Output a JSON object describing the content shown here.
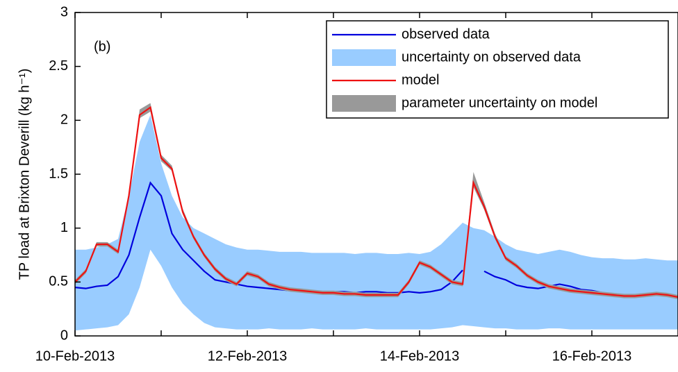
{
  "chart_data": {
    "type": "line",
    "ylabel": "TP load at Brixton Deverill (kg h⁻¹)",
    "annotation": "(b)",
    "x": [
      0,
      0.125,
      0.25,
      0.375,
      0.5,
      0.625,
      0.75,
      0.875,
      1,
      1.125,
      1.25,
      1.375,
      1.5,
      1.625,
      1.75,
      1.875,
      2,
      2.125,
      2.25,
      2.375,
      2.5,
      2.625,
      2.75,
      2.875,
      3,
      3.125,
      3.25,
      3.375,
      3.5,
      3.625,
      3.75,
      3.875,
      4,
      4.125,
      4.25,
      4.375,
      4.5,
      4.625,
      4.75,
      4.875,
      5,
      5.125,
      5.25,
      5.375,
      5.5,
      5.625,
      5.75,
      5.875,
      6,
      6.125,
      6.25,
      6.375,
      6.5,
      6.625,
      6.75,
      6.875,
      7
    ],
    "xlim": [
      0,
      7
    ],
    "xticks": [
      {
        "value": 0,
        "label": "10-Feb-2013"
      },
      {
        "value": 2,
        "label": "12-Feb-2013"
      },
      {
        "value": 4,
        "label": "14-Feb-2013"
      },
      {
        "value": 6,
        "label": "16-Feb-2013"
      }
    ],
    "xminor_ticks": [
      1,
      3,
      5
    ],
    "ylim": [
      0,
      3
    ],
    "yticks": [
      0,
      0.5,
      1,
      1.5,
      2,
      2.5,
      3
    ],
    "series": [
      {
        "name": "uncertainty on observed data",
        "kind": "band",
        "color": "#99ccff",
        "lower": [
          0.05,
          0.06,
          0.07,
          0.08,
          0.1,
          0.2,
          0.45,
          0.8,
          0.65,
          0.45,
          0.3,
          0.2,
          0.12,
          0.08,
          0.07,
          0.06,
          0.06,
          0.06,
          0.07,
          0.06,
          0.06,
          0.06,
          0.07,
          0.06,
          0.06,
          0.06,
          0.06,
          0.07,
          0.06,
          0.06,
          0.06,
          0.06,
          0.06,
          0.06,
          0.07,
          0.08,
          0.1,
          0.09,
          0.08,
          0.07,
          0.07,
          0.06,
          0.06,
          0.06,
          0.07,
          0.07,
          0.06,
          0.06,
          0.06,
          0.06,
          0.06,
          0.06,
          0.06,
          0.06,
          0.06,
          0.06,
          0.06
        ],
        "upper": [
          0.8,
          0.8,
          0.82,
          0.85,
          0.9,
          1.3,
          1.8,
          2.05,
          1.6,
          1.3,
          1.1,
          1.0,
          0.95,
          0.9,
          0.85,
          0.82,
          0.8,
          0.8,
          0.79,
          0.78,
          0.78,
          0.78,
          0.77,
          0.77,
          0.77,
          0.77,
          0.76,
          0.77,
          0.77,
          0.76,
          0.76,
          0.77,
          0.76,
          0.78,
          0.85,
          0.95,
          1.05,
          1.0,
          0.98,
          0.92,
          0.85,
          0.8,
          0.78,
          0.76,
          0.78,
          0.8,
          0.78,
          0.75,
          0.73,
          0.72,
          0.72,
          0.71,
          0.71,
          0.72,
          0.71,
          0.7,
          0.7
        ]
      },
      {
        "name": "observed data",
        "kind": "line",
        "color": "#0000dd",
        "values": [
          0.45,
          0.44,
          0.46,
          0.47,
          0.55,
          0.75,
          1.1,
          1.42,
          1.3,
          0.95,
          0.8,
          0.7,
          0.6,
          0.52,
          0.5,
          0.48,
          0.46,
          0.45,
          0.44,
          0.43,
          0.42,
          0.42,
          0.41,
          0.41,
          0.41,
          0.41,
          0.4,
          0.41,
          0.41,
          0.4,
          0.4,
          0.41,
          0.4,
          0.41,
          0.43,
          0.5,
          0.61,
          null,
          0.6,
          0.55,
          0.52,
          0.47,
          0.45,
          0.44,
          0.46,
          0.48,
          0.46,
          0.43,
          0.42,
          0.4,
          0.39,
          0.38,
          0.38,
          0.39,
          0.38,
          0.37,
          0.37
        ]
      },
      {
        "name": "parameter uncertainty on model",
        "kind": "band",
        "color": "#999999",
        "lower": [
          0.48,
          0.58,
          0.83,
          0.83,
          0.76,
          1.28,
          2.02,
          2.08,
          1.62,
          1.53,
          1.13,
          0.9,
          0.73,
          0.6,
          0.51,
          0.46,
          0.56,
          0.53,
          0.46,
          0.43,
          0.41,
          0.4,
          0.39,
          0.38,
          0.38,
          0.37,
          0.37,
          0.36,
          0.36,
          0.36,
          0.36,
          0.48,
          0.66,
          0.62,
          0.55,
          0.48,
          0.46,
          1.38,
          1.17,
          0.9,
          0.7,
          0.63,
          0.54,
          0.48,
          0.44,
          0.42,
          0.4,
          0.39,
          0.38,
          0.37,
          0.36,
          0.35,
          0.35,
          0.36,
          0.37,
          0.36,
          0.34
        ],
        "upper": [
          0.52,
          0.62,
          0.87,
          0.87,
          0.8,
          1.33,
          2.1,
          2.16,
          1.68,
          1.58,
          1.18,
          0.94,
          0.77,
          0.64,
          0.55,
          0.5,
          0.6,
          0.57,
          0.5,
          0.47,
          0.45,
          0.44,
          0.43,
          0.42,
          0.42,
          0.41,
          0.41,
          0.4,
          0.4,
          0.4,
          0.4,
          0.52,
          0.7,
          0.66,
          0.59,
          0.52,
          0.5,
          1.52,
          1.24,
          0.95,
          0.74,
          0.67,
          0.58,
          0.52,
          0.48,
          0.46,
          0.44,
          0.43,
          0.42,
          0.41,
          0.4,
          0.39,
          0.39,
          0.4,
          0.41,
          0.4,
          0.38
        ]
      },
      {
        "name": "model",
        "kind": "line",
        "color": "#ee1111",
        "values": [
          0.5,
          0.6,
          0.85,
          0.85,
          0.78,
          1.3,
          2.05,
          2.12,
          1.65,
          1.55,
          1.15,
          0.92,
          0.75,
          0.62,
          0.53,
          0.48,
          0.58,
          0.55,
          0.48,
          0.45,
          0.43,
          0.42,
          0.41,
          0.4,
          0.4,
          0.39,
          0.39,
          0.38,
          0.38,
          0.38,
          0.38,
          0.5,
          0.68,
          0.64,
          0.57,
          0.5,
          0.48,
          1.42,
          1.2,
          0.92,
          0.72,
          0.65,
          0.56,
          0.5,
          0.46,
          0.44,
          0.42,
          0.41,
          0.4,
          0.39,
          0.38,
          0.37,
          0.37,
          0.38,
          0.39,
          0.38,
          0.36
        ]
      }
    ],
    "legend_order": [
      1,
      0,
      3,
      2
    ],
    "legend": "upper right"
  }
}
